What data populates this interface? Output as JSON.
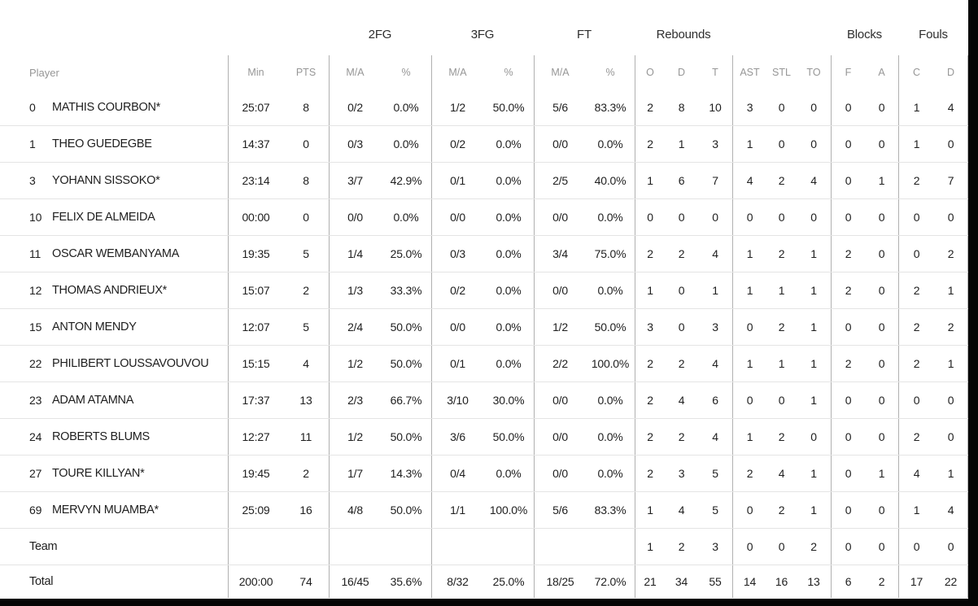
{
  "colors": {
    "background": "#ffffff",
    "frame_bar": "#050505",
    "text": "#1e1e1e",
    "header_muted": "#969696",
    "vertical_divider": "#b0b0b0",
    "horizontal_divider": "#e4e4e4"
  },
  "table": {
    "group_headers": {
      "fg2": "2FG",
      "fg3": "3FG",
      "ft": "FT",
      "rebounds": "Rebounds",
      "blocks": "Blocks",
      "fouls": "Fouls"
    },
    "headers": {
      "player": "Player",
      "min": "Min",
      "pts": "PTS",
      "ma": "M/A",
      "pct": "%",
      "o": "O",
      "d": "D",
      "t": "T",
      "ast": "AST",
      "stl": "STL",
      "to": "TO",
      "f": "F",
      "a": "A",
      "c": "C"
    },
    "rows": [
      {
        "type": "player",
        "num": "0",
        "name": "MATHIS COURBON*",
        "min": "25:07",
        "pts": "8",
        "fg2_ma": "0/2",
        "fg2_pct": "0.0%",
        "fg3_ma": "1/2",
        "fg3_pct": "50.0%",
        "ft_ma": "5/6",
        "ft_pct": "83.3%",
        "reb_o": "2",
        "reb_d": "8",
        "reb_t": "10",
        "ast": "3",
        "stl": "0",
        "to": "0",
        "blk_f": "0",
        "blk_a": "0",
        "foul_c": "1",
        "foul_d": "4"
      },
      {
        "type": "player",
        "num": "1",
        "name": "THEO GUEDEGBE",
        "min": "14:37",
        "pts": "0",
        "fg2_ma": "0/3",
        "fg2_pct": "0.0%",
        "fg3_ma": "0/2",
        "fg3_pct": "0.0%",
        "ft_ma": "0/0",
        "ft_pct": "0.0%",
        "reb_o": "2",
        "reb_d": "1",
        "reb_t": "3",
        "ast": "1",
        "stl": "0",
        "to": "0",
        "blk_f": "0",
        "blk_a": "0",
        "foul_c": "1",
        "foul_d": "0"
      },
      {
        "type": "player",
        "num": "3",
        "name": "YOHANN SISSOKO*",
        "min": "23:14",
        "pts": "8",
        "fg2_ma": "3/7",
        "fg2_pct": "42.9%",
        "fg3_ma": "0/1",
        "fg3_pct": "0.0%",
        "ft_ma": "2/5",
        "ft_pct": "40.0%",
        "reb_o": "1",
        "reb_d": "6",
        "reb_t": "7",
        "ast": "4",
        "stl": "2",
        "to": "4",
        "blk_f": "0",
        "blk_a": "1",
        "foul_c": "2",
        "foul_d": "7"
      },
      {
        "type": "player",
        "num": "10",
        "name": "FELIX DE ALMEIDA",
        "min": "00:00",
        "pts": "0",
        "fg2_ma": "0/0",
        "fg2_pct": "0.0%",
        "fg3_ma": "0/0",
        "fg3_pct": "0.0%",
        "ft_ma": "0/0",
        "ft_pct": "0.0%",
        "reb_o": "0",
        "reb_d": "0",
        "reb_t": "0",
        "ast": "0",
        "stl": "0",
        "to": "0",
        "blk_f": "0",
        "blk_a": "0",
        "foul_c": "0",
        "foul_d": "0"
      },
      {
        "type": "player",
        "num": "11",
        "name": "OSCAR WEMBANYAMA",
        "min": "19:35",
        "pts": "5",
        "fg2_ma": "1/4",
        "fg2_pct": "25.0%",
        "fg3_ma": "0/3",
        "fg3_pct": "0.0%",
        "ft_ma": "3/4",
        "ft_pct": "75.0%",
        "reb_o": "2",
        "reb_d": "2",
        "reb_t": "4",
        "ast": "1",
        "stl": "2",
        "to": "1",
        "blk_f": "2",
        "blk_a": "0",
        "foul_c": "0",
        "foul_d": "2"
      },
      {
        "type": "player",
        "num": "12",
        "name": "THOMAS ANDRIEUX*",
        "min": "15:07",
        "pts": "2",
        "fg2_ma": "1/3",
        "fg2_pct": "33.3%",
        "fg3_ma": "0/2",
        "fg3_pct": "0.0%",
        "ft_ma": "0/0",
        "ft_pct": "0.0%",
        "reb_o": "1",
        "reb_d": "0",
        "reb_t": "1",
        "ast": "1",
        "stl": "1",
        "to": "1",
        "blk_f": "2",
        "blk_a": "0",
        "foul_c": "2",
        "foul_d": "1"
      },
      {
        "type": "player",
        "num": "15",
        "name": "ANTON MENDY",
        "min": "12:07",
        "pts": "5",
        "fg2_ma": "2/4",
        "fg2_pct": "50.0%",
        "fg3_ma": "0/0",
        "fg3_pct": "0.0%",
        "ft_ma": "1/2",
        "ft_pct": "50.0%",
        "reb_o": "3",
        "reb_d": "0",
        "reb_t": "3",
        "ast": "0",
        "stl": "2",
        "to": "1",
        "blk_f": "0",
        "blk_a": "0",
        "foul_c": "2",
        "foul_d": "2"
      },
      {
        "type": "player",
        "num": "22",
        "name": "PHILIBERT LOUSSAVOUVOU",
        "min": "15:15",
        "pts": "4",
        "fg2_ma": "1/2",
        "fg2_pct": "50.0%",
        "fg3_ma": "0/1",
        "fg3_pct": "0.0%",
        "ft_ma": "2/2",
        "ft_pct": "100.0%",
        "reb_o": "2",
        "reb_d": "2",
        "reb_t": "4",
        "ast": "1",
        "stl": "1",
        "to": "1",
        "blk_f": "2",
        "blk_a": "0",
        "foul_c": "2",
        "foul_d": "1"
      },
      {
        "type": "player",
        "num": "23",
        "name": "ADAM ATAMNA",
        "min": "17:37",
        "pts": "13",
        "fg2_ma": "2/3",
        "fg2_pct": "66.7%",
        "fg3_ma": "3/10",
        "fg3_pct": "30.0%",
        "ft_ma": "0/0",
        "ft_pct": "0.0%",
        "reb_o": "2",
        "reb_d": "4",
        "reb_t": "6",
        "ast": "0",
        "stl": "0",
        "to": "1",
        "blk_f": "0",
        "blk_a": "0",
        "foul_c": "0",
        "foul_d": "0"
      },
      {
        "type": "player",
        "num": "24",
        "name": "ROBERTS BLUMS",
        "min": "12:27",
        "pts": "11",
        "fg2_ma": "1/2",
        "fg2_pct": "50.0%",
        "fg3_ma": "3/6",
        "fg3_pct": "50.0%",
        "ft_ma": "0/0",
        "ft_pct": "0.0%",
        "reb_o": "2",
        "reb_d": "2",
        "reb_t": "4",
        "ast": "1",
        "stl": "2",
        "to": "0",
        "blk_f": "0",
        "blk_a": "0",
        "foul_c": "2",
        "foul_d": "0"
      },
      {
        "type": "player",
        "num": "27",
        "name": "TOURE KILLYAN*",
        "min": "19:45",
        "pts": "2",
        "fg2_ma": "1/7",
        "fg2_pct": "14.3%",
        "fg3_ma": "0/4",
        "fg3_pct": "0.0%",
        "ft_ma": "0/0",
        "ft_pct": "0.0%",
        "reb_o": "2",
        "reb_d": "3",
        "reb_t": "5",
        "ast": "2",
        "stl": "4",
        "to": "1",
        "blk_f": "0",
        "blk_a": "1",
        "foul_c": "4",
        "foul_d": "1"
      },
      {
        "type": "player",
        "num": "69",
        "name": "MERVYN MUAMBA*",
        "min": "25:09",
        "pts": "16",
        "fg2_ma": "4/8",
        "fg2_pct": "50.0%",
        "fg3_ma": "1/1",
        "fg3_pct": "100.0%",
        "ft_ma": "5/6",
        "ft_pct": "83.3%",
        "reb_o": "1",
        "reb_d": "4",
        "reb_t": "5",
        "ast": "0",
        "stl": "2",
        "to": "1",
        "blk_f": "0",
        "blk_a": "0",
        "foul_c": "1",
        "foul_d": "4"
      },
      {
        "type": "team",
        "num": "",
        "name": "Team",
        "min": "",
        "pts": "",
        "fg2_ma": "",
        "fg2_pct": "",
        "fg3_ma": "",
        "fg3_pct": "",
        "ft_ma": "",
        "ft_pct": "",
        "reb_o": "1",
        "reb_d": "2",
        "reb_t": "3",
        "ast": "0",
        "stl": "0",
        "to": "2",
        "blk_f": "0",
        "blk_a": "0",
        "foul_c": "0",
        "foul_d": "0"
      },
      {
        "type": "total",
        "num": "",
        "name": "Total",
        "min": "200:00",
        "pts": "74",
        "fg2_ma": "16/45",
        "fg2_pct": "35.6%",
        "fg3_ma": "8/32",
        "fg3_pct": "25.0%",
        "ft_ma": "18/25",
        "ft_pct": "72.0%",
        "reb_o": "21",
        "reb_d": "34",
        "reb_t": "55",
        "ast": "14",
        "stl": "16",
        "to": "13",
        "blk_f": "6",
        "blk_a": "2",
        "foul_c": "17",
        "foul_d": "22"
      }
    ]
  }
}
